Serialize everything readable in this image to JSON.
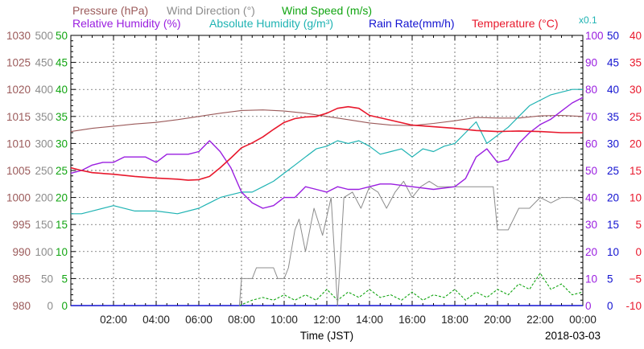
{
  "chart_data": {
    "type": "line",
    "xlabel": "Time (JST)",
    "date": "2018-03-03",
    "x_range": [
      "00:00",
      "24:00"
    ],
    "x_ticks": [
      "02:00",
      "04:00",
      "06:00",
      "08:00",
      "10:00",
      "12:00",
      "14:00",
      "16:00",
      "18:00",
      "20:00",
      "22:00",
      "00:00"
    ],
    "grid": true,
    "legend": {
      "row1": [
        {
          "id": "pressure",
          "label": "Pressure (hPa)",
          "color": "#9b5a5a"
        },
        {
          "id": "wdir",
          "label": "Wind Direction (°)",
          "color": "#8c8c8c"
        },
        {
          "id": "wspd",
          "label": "Wind Speed (m/s)",
          "color": "#11a511"
        }
      ],
      "row2": [
        {
          "id": "rh",
          "label": "Relative Humidity (%)",
          "color": "#9a1ee0"
        },
        {
          "id": "ah",
          "label": "Absolute Humidity (g/m³)",
          "color": "#1fb3b3"
        },
        {
          "id": "rain",
          "label": "Rain Rate(mm/h)",
          "color": "#1212d0"
        },
        {
          "id": "temp",
          "label": "Temperature (°C)",
          "color": "#e8182c"
        }
      ],
      "note": "x0.1"
    },
    "axes": {
      "pressure": {
        "color": "#9b5a5a",
        "min": 980,
        "max": 1030,
        "ticks": [
          "980",
          "985",
          "990",
          "995",
          "1000",
          "1005",
          "1010",
          "1015",
          "1020",
          "1025",
          "1030"
        ]
      },
      "wdir": {
        "color": "#8c8c8c",
        "min": 0,
        "max": 500,
        "ticks": [
          "0",
          "50",
          "100",
          "150",
          "200",
          "250",
          "300",
          "350",
          "400",
          "450",
          "500"
        ]
      },
      "wspd": {
        "color": "#11a511",
        "min": 0,
        "max": 50,
        "ticks": [
          "0",
          "5",
          "10",
          "15",
          "20",
          "25",
          "30",
          "35",
          "40",
          "45",
          "50"
        ]
      },
      "rh": {
        "color": "#9a1ee0",
        "min": 0,
        "max": 100,
        "ticks": [
          "0",
          "10",
          "20",
          "30",
          "40",
          "50",
          "60",
          "70",
          "80",
          "90",
          "100"
        ]
      },
      "rain": {
        "color": "#1212d0",
        "min": 0,
        "max": 50,
        "ticks": [
          "0",
          "5",
          "10",
          "15",
          "20",
          "25",
          "30",
          "35",
          "40",
          "45",
          "50"
        ]
      },
      "temp": {
        "color": "#e8182c",
        "min": -10,
        "max": 40,
        "ticks": [
          "-10",
          "−5",
          "0",
          "5",
          "10",
          "15",
          "20",
          "25",
          "30",
          "35",
          "40"
        ]
      }
    },
    "series": [
      {
        "id": "pressure",
        "name": "Pressure (hPa)",
        "axis": "pressure",
        "color": "#9b5a5a",
        "x": [
          0,
          1,
          2,
          3,
          4,
          5,
          6,
          7,
          8,
          9,
          10,
          11,
          12,
          13,
          14,
          15,
          16,
          17,
          18,
          19,
          20,
          21,
          22,
          23,
          24
        ],
        "y": [
          1012.2,
          1012.8,
          1013.2,
          1013.6,
          1013.9,
          1014.4,
          1015.0,
          1015.6,
          1016.1,
          1016.2,
          1016.0,
          1015.6,
          1015.0,
          1014.4,
          1013.8,
          1013.4,
          1013.3,
          1013.7,
          1014.2,
          1014.8,
          1014.7,
          1014.7,
          1015.1,
          1015.2,
          1015.0
        ]
      },
      {
        "id": "temp",
        "name": "Temperature (°C)",
        "axis": "temp",
        "color": "#e8182c",
        "x": [
          0,
          0.5,
          1,
          2,
          3,
          4,
          5,
          5.5,
          6,
          6.5,
          7,
          7.5,
          8,
          8.5,
          9,
          9.5,
          10,
          10.5,
          11,
          11.5,
          12,
          12.5,
          13,
          13.5,
          14,
          15,
          16,
          17,
          18,
          19,
          20,
          21,
          22,
          23,
          24
        ],
        "y": [
          15.5,
          15,
          14.6,
          14.3,
          13.9,
          13.6,
          13.4,
          13.2,
          13.3,
          13.9,
          15.5,
          17.3,
          19.2,
          20.1,
          21.2,
          22.6,
          23.9,
          24.6,
          24.9,
          25.0,
          25.6,
          26.5,
          26.8,
          26.5,
          25.2,
          24.3,
          23.4,
          23.1,
          22.8,
          22.4,
          22.2,
          22.3,
          22.2,
          22.0,
          22.0
        ]
      },
      {
        "id": "rh",
        "name": "Relative Humidity (%)",
        "axis": "rh",
        "color": "#9a1ee0",
        "x": [
          0,
          0.5,
          1,
          1.5,
          2,
          2.5,
          3,
          3.5,
          4,
          4.5,
          5,
          5.5,
          6,
          6.5,
          7,
          7.5,
          8,
          8.5,
          9,
          9.5,
          10,
          10.5,
          11,
          11.5,
          12,
          12.5,
          13,
          13.5,
          14,
          14.5,
          15,
          16,
          17,
          18,
          18.5,
          19,
          19.5,
          20,
          20.5,
          21,
          21.5,
          22,
          22.5,
          23,
          23.5,
          24
        ],
        "y": [
          49,
          50,
          52,
          53,
          53,
          55,
          55,
          55,
          53,
          56,
          56,
          56,
          57,
          61,
          57,
          51,
          42,
          38,
          36,
          37,
          40,
          40,
          44,
          43,
          42,
          44,
          43,
          43,
          44,
          45,
          45,
          44,
          43,
          44,
          47,
          55,
          58,
          53,
          54,
          60,
          64,
          67,
          69,
          72,
          75,
          77
        ]
      },
      {
        "id": "ah",
        "name": "Absolute Humidity (g/m³)",
        "axis": "rh",
        "color": "#1fb3b3",
        "x": [
          0,
          0.5,
          1,
          2,
          3,
          4,
          5,
          6,
          6.5,
          7,
          7.5,
          8,
          8.5,
          9,
          9.5,
          10,
          10.5,
          11,
          11.5,
          12,
          12.5,
          13,
          13.5,
          14,
          14.5,
          15,
          15.5,
          16,
          16.5,
          17,
          17.5,
          18,
          18.5,
          19,
          19.5,
          20,
          20.5,
          21,
          21.5,
          22,
          22.5,
          23,
          23.5,
          24
        ],
        "y": [
          34,
          34,
          35,
          37,
          35,
          35,
          34,
          36,
          38,
          40,
          41,
          42,
          42,
          44,
          46,
          49,
          52,
          55,
          58,
          59,
          61,
          60,
          61,
          59,
          56,
          57,
          58,
          55,
          58,
          57,
          59,
          60,
          64,
          68,
          60,
          63,
          66,
          70,
          74,
          76,
          78,
          79,
          80,
          80
        ]
      },
      {
        "id": "wdir",
        "name": "Wind Direction (°)",
        "axis": "wdir",
        "color": "#8c8c8c",
        "x": [
          7.9,
          8.0,
          8.5,
          8.7,
          9.0,
          9.5,
          9.7,
          10.0,
          10.2,
          10.5,
          10.7,
          11.0,
          11.4,
          11.8,
          12.2,
          12.5,
          12.8,
          13.2,
          13.6,
          14.0,
          14.4,
          14.8,
          15.2,
          15.6,
          16.0,
          16.4,
          16.8,
          17.2,
          17.6,
          18.0,
          18.5,
          19.0,
          19.5,
          19.8,
          20.0,
          20.5,
          21.0,
          21.5,
          22.0,
          22.5,
          23.0,
          23.5,
          24.0
        ],
        "y": [
          0,
          50,
          50,
          70,
          70,
          70,
          50,
          50,
          70,
          140,
          160,
          100,
          180,
          130,
          200,
          0,
          200,
          210,
          180,
          220,
          210,
          180,
          210,
          230,
          200,
          220,
          230,
          220,
          220,
          220,
          220,
          220,
          220,
          220,
          140,
          140,
          180,
          180,
          200,
          190,
          200,
          200,
          190
        ]
      },
      {
        "id": "wspd",
        "name": "Wind Speed (m/s)",
        "axis": "wspd",
        "color": "#11a511",
        "x": [
          7.9,
          8.5,
          9,
          9.5,
          10,
          10.5,
          11,
          11.5,
          12,
          12.5,
          13,
          13.5,
          14,
          14.5,
          15,
          15.5,
          16,
          16.5,
          17,
          17.5,
          18,
          18.5,
          19,
          19.5,
          20,
          20.5,
          21,
          21.5,
          22,
          22.5,
          23,
          23.5,
          24
        ],
        "y": [
          0,
          1,
          1.5,
          1,
          2,
          1,
          2,
          1,
          3,
          1,
          2.5,
          1.5,
          3,
          1.5,
          2,
          1,
          2.5,
          1,
          2,
          1.5,
          3,
          1,
          2.5,
          1.5,
          3,
          2,
          4,
          3,
          6,
          3,
          4,
          2,
          2.5
        ]
      },
      {
        "id": "rain",
        "name": "Rain Rate(mm/h)",
        "axis": "rain",
        "color": "#1212d0",
        "x": [
          0,
          24
        ],
        "y": [
          0,
          0
        ]
      }
    ]
  }
}
